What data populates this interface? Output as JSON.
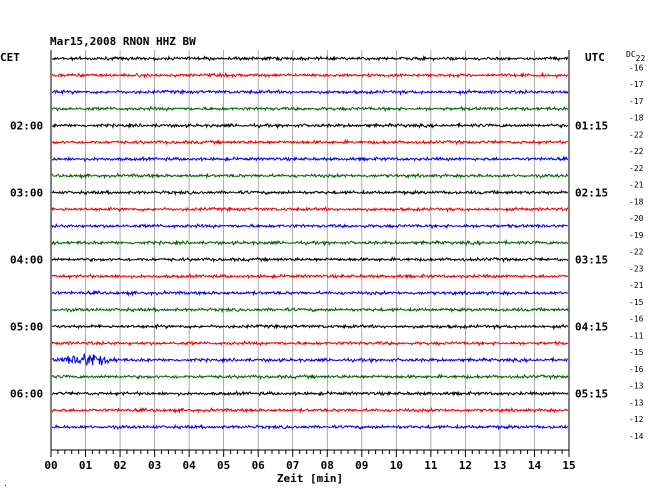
{
  "chart_data": {
    "type": "line",
    "title": "Mar15,2008   RNON HHZ BW",
    "left_axis_label": "CET",
    "right_axis_label": "UTC",
    "dc_label": "DC",
    "dc_top": "22",
    "xlabel": "Zeit [min]",
    "xlim": [
      0,
      15
    ],
    "x_ticks": [
      "00",
      "01",
      "02",
      "03",
      "04",
      "05",
      "06",
      "07",
      "08",
      "09",
      "10",
      "11",
      "12",
      "13",
      "14",
      "15"
    ],
    "rows_per_hour": 4,
    "trace_colors": [
      "#000000",
      "#ee0000",
      "#0000ee",
      "#006600"
    ],
    "hour_labels_left": [
      {
        "row": 4,
        "text": "02:00"
      },
      {
        "row": 8,
        "text": "03:00"
      },
      {
        "row": 12,
        "text": "04:00"
      },
      {
        "row": 16,
        "text": "05:00"
      },
      {
        "row": 20,
        "text": "06:00"
      }
    ],
    "hour_labels_right": [
      {
        "row": 4,
        "text": "01:15"
      },
      {
        "row": 8,
        "text": "02:15"
      },
      {
        "row": 12,
        "text": "03:15"
      },
      {
        "row": 16,
        "text": "04:15"
      },
      {
        "row": 20,
        "text": "05:15"
      }
    ],
    "dc_offsets": [
      "-16",
      "-17",
      "-17",
      "-18",
      "-22",
      "-22",
      "-22",
      "-21",
      "-18",
      "-20",
      "-19",
      "-22",
      "-23",
      "-21",
      "-15",
      "-16",
      "-11",
      "-15",
      "-16",
      "-13",
      "-13",
      "-12",
      "-14"
    ],
    "events": [
      {
        "row": 18,
        "start_min": 0.1,
        "end_min": 1.9,
        "peak_min": 1.2
      }
    ],
    "corner_mark": "."
  }
}
